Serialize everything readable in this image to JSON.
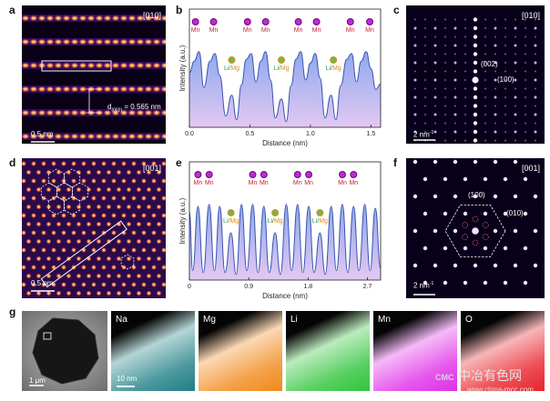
{
  "panels": {
    "a": {
      "letter": "a",
      "zone": "[010]",
      "d_label_prefix": "d",
      "d_label_sub": "(002)",
      "d_label_value": "= 0.565 nm",
      "scale": "0.5 nm"
    },
    "b": {
      "letter": "b"
    },
    "c": {
      "letter": "c",
      "zone": "[010]",
      "spot_002": "(002)",
      "spot_100": "(100)",
      "scale": "2 nm",
      "scale_sup": "-1"
    },
    "d": {
      "letter": "d",
      "zone": "[001]",
      "scale": "0.5 nm"
    },
    "e": {
      "letter": "e"
    },
    "f": {
      "letter": "f",
      "zone": "[001]",
      "spot_100": "(100)",
      "spot_010": "(010)",
      "scale": "2 nm",
      "scale_sup": "-1"
    },
    "g": {
      "letter": "g",
      "scale_tem": "1 μm",
      "scale_map": "10 nm",
      "maps": [
        {
          "label": "Na",
          "color": "#1f7f86"
        },
        {
          "label": "Mg",
          "color": "#f08a1c"
        },
        {
          "label": "Li",
          "color": "#31c43c"
        },
        {
          "label": "Mn",
          "color": "#e02ee8"
        },
        {
          "label": "O",
          "color": "#e8232b"
        }
      ]
    }
  },
  "chart_data": [
    {
      "type": "area",
      "panel": "b",
      "xlabel": "Distance (nm)",
      "ylabel": "Intensity (a.u.)",
      "xlim": [
        0,
        1.58
      ],
      "xticks": [
        0.0,
        0.5,
        1.0,
        1.5
      ],
      "xtick_labels": [
        "0.0",
        "0.5",
        "1.0",
        "1.5"
      ],
      "fill_color": "#b9aaf0",
      "line_color": "#3b55b0",
      "profile": [
        [
          0.0,
          0.58
        ],
        [
          0.04,
          0.7
        ],
        [
          0.08,
          0.8
        ],
        [
          0.12,
          0.42
        ],
        [
          0.17,
          0.7
        ],
        [
          0.21,
          0.78
        ],
        [
          0.25,
          0.55
        ],
        [
          0.3,
          0.12
        ],
        [
          0.35,
          0.34
        ],
        [
          0.39,
          0.08
        ],
        [
          0.43,
          0.45
        ],
        [
          0.47,
          0.72
        ],
        [
          0.51,
          0.78
        ],
        [
          0.55,
          0.48
        ],
        [
          0.59,
          0.7
        ],
        [
          0.63,
          0.8
        ],
        [
          0.67,
          0.5
        ],
        [
          0.71,
          0.1
        ],
        [
          0.76,
          0.3
        ],
        [
          0.8,
          0.06
        ],
        [
          0.84,
          0.44
        ],
        [
          0.88,
          0.72
        ],
        [
          0.92,
          0.8
        ],
        [
          0.96,
          0.5
        ],
        [
          1.0,
          0.68
        ],
        [
          1.04,
          0.78
        ],
        [
          1.08,
          0.52
        ],
        [
          1.12,
          0.1
        ],
        [
          1.17,
          0.34
        ],
        [
          1.21,
          0.08
        ],
        [
          1.25,
          0.44
        ],
        [
          1.3,
          0.72
        ],
        [
          1.34,
          0.78
        ],
        [
          1.38,
          0.48
        ],
        [
          1.42,
          0.7
        ],
        [
          1.46,
          0.8
        ],
        [
          1.5,
          0.62
        ],
        [
          1.54,
          0.4
        ],
        [
          1.58,
          0.46
        ]
      ],
      "annotations": [
        {
          "text": "Mn",
          "x": 0.05,
          "kind": "Mn"
        },
        {
          "text": "Mn",
          "x": 0.2,
          "kind": "Mn"
        },
        {
          "text": "Li/Mg",
          "x": 0.35,
          "kind": "Li"
        },
        {
          "text": "Mn",
          "x": 0.48,
          "kind": "Mn"
        },
        {
          "text": "Mn",
          "x": 0.63,
          "kind": "Mn"
        },
        {
          "text": "Li/Mg",
          "x": 0.76,
          "kind": "Li"
        },
        {
          "text": "Mn",
          "x": 0.9,
          "kind": "Mn"
        },
        {
          "text": "Mn",
          "x": 1.05,
          "kind": "Mn"
        },
        {
          "text": "Li/Mg",
          "x": 1.19,
          "kind": "Li"
        },
        {
          "text": "Mn",
          "x": 1.33,
          "kind": "Mn"
        },
        {
          "text": "Mn",
          "x": 1.49,
          "kind": "Mn"
        }
      ]
    },
    {
      "type": "area",
      "panel": "e",
      "xlabel": "Distance (nm)",
      "ylabel": "Intensity (a.u.)",
      "xlim": [
        0,
        2.9
      ],
      "xticks": [
        0.0,
        0.9,
        1.8,
        2.7
      ],
      "xtick_labels": [
        "0",
        "0.9",
        "1.8",
        "2.7"
      ],
      "fill_color": "#b9aaf0",
      "line_color": "#3b55b0",
      "profile": [
        [
          0.0,
          0.72
        ],
        [
          0.05,
          0.1
        ],
        [
          0.13,
          0.78
        ],
        [
          0.21,
          0.08
        ],
        [
          0.3,
          0.8
        ],
        [
          0.38,
          0.1
        ],
        [
          0.46,
          0.78
        ],
        [
          0.54,
          0.08
        ],
        [
          0.63,
          0.5
        ],
        [
          0.71,
          0.06
        ],
        [
          0.79,
          0.8
        ],
        [
          0.87,
          0.1
        ],
        [
          0.96,
          0.8
        ],
        [
          1.04,
          0.08
        ],
        [
          1.13,
          0.78
        ],
        [
          1.21,
          0.08
        ],
        [
          1.3,
          0.5
        ],
        [
          1.38,
          0.06
        ],
        [
          1.47,
          0.8
        ],
        [
          1.55,
          0.1
        ],
        [
          1.64,
          0.8
        ],
        [
          1.72,
          0.08
        ],
        [
          1.81,
          0.78
        ],
        [
          1.89,
          0.08
        ],
        [
          1.98,
          0.5
        ],
        [
          2.06,
          0.06
        ],
        [
          2.15,
          0.78
        ],
        [
          2.23,
          0.1
        ],
        [
          2.32,
          0.8
        ],
        [
          2.4,
          0.08
        ],
        [
          2.49,
          0.78
        ],
        [
          2.57,
          0.1
        ],
        [
          2.66,
          0.8
        ],
        [
          2.74,
          0.1
        ],
        [
          2.82,
          0.76
        ],
        [
          2.9,
          0.12
        ]
      ],
      "annotations": [
        {
          "text": "Mn",
          "x": 0.13,
          "kind": "Mn"
        },
        {
          "text": "Mn",
          "x": 0.3,
          "kind": "Mn"
        },
        {
          "text": "Li/Mg",
          "x": 0.63,
          "kind": "Li"
        },
        {
          "text": "Mn",
          "x": 0.96,
          "kind": "Mn"
        },
        {
          "text": "Mn",
          "x": 1.13,
          "kind": "Mn"
        },
        {
          "text": "Li/Mg",
          "x": 1.3,
          "kind": "Li"
        },
        {
          "text": "Mn",
          "x": 1.64,
          "kind": "Mn"
        },
        {
          "text": "Mn",
          "x": 1.81,
          "kind": "Mn"
        },
        {
          "text": "Li/Mg",
          "x": 1.98,
          "kind": "Li"
        },
        {
          "text": "Mn",
          "x": 2.32,
          "kind": "Mn"
        },
        {
          "text": "Mn",
          "x": 2.49,
          "kind": "Mn"
        }
      ]
    }
  ],
  "watermark": {
    "brand": "CMC",
    "cn": "中冶有色网",
    "url": "www.china-mcc.com"
  }
}
